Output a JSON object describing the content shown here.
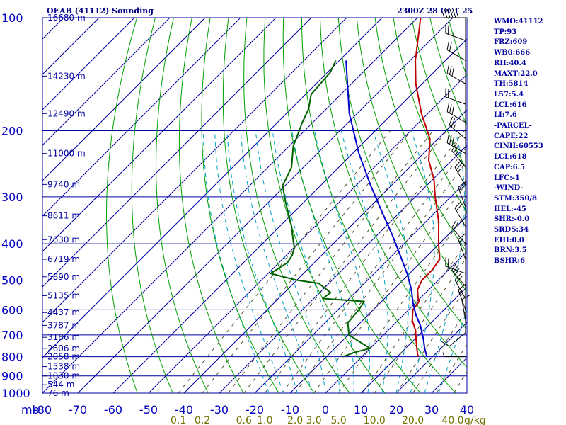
{
  "header": {
    "title_left": "OEAB (41112) Sounding",
    "title_right": "2300Z 28 OCT 25"
  },
  "indices": [
    "WMO:41112",
    "TP:93",
    "FRZ:609",
    "WB0:666",
    "RH:40.4",
    "MAXT:22.0",
    "TH:5814",
    "L57:5.4",
    "LCL:616",
    "LI:7.6",
    "-PARCEL-",
    "CAPE:22",
    "CINH:60553",
    "LCL:618",
    "CAP:6.5",
    "LFC:-1",
    "-WIND-",
    "STM:350/8",
    "HEL:-45",
    "SHR:-0.0",
    "SRDS:34",
    "EHI:0.0",
    "BRN:3.5",
    "BSHR:6"
  ],
  "colors": {
    "isotherm": "#0000a0",
    "dry_adiabat": "#00a000",
    "moist_adiabat": "#00a0c8",
    "mixing_ratio": "#505030",
    "temperature": "#c00000",
    "dewpoint": "#006000",
    "parcel": "#0000c8",
    "axis_text": "#0000c0",
    "mixing_text": "#707000",
    "height_text": "#0000a0",
    "wind": "#000000"
  },
  "chart_data": {
    "type": "line",
    "title": "OEAB (41112) Sounding",
    "diagram": "skew-T log-P",
    "xlabel": "",
    "ylabel": "mb",
    "x_unit": "°C",
    "xlim": [
      -80,
      40
    ],
    "ylim": [
      1000,
      100
    ],
    "y_scale": "log",
    "pressure_ticks": [
      100,
      200,
      300,
      400,
      500,
      600,
      700,
      800,
      900,
      1000
    ],
    "temperature_ticks": [
      -80,
      -70,
      -60,
      -50,
      -40,
      -30,
      -20,
      -10,
      0,
      10,
      20,
      30,
      40
    ],
    "temperature_tick_labels": [
      "-80",
      "-70",
      "-60",
      "-50",
      "-40",
      "-30",
      "-20",
      "-10",
      "0",
      "10",
      "20",
      "30",
      "40"
    ],
    "mixing_ratio_labels": [
      "0.1",
      "0.2",
      "0.6",
      "1.0",
      "2.0",
      "3.0",
      "5.0",
      "10.0",
      "20.0",
      "40.0"
    ],
    "mixing_ratio_unit": "g/kg",
    "height_labels": [
      {
        "p": 100,
        "label": "16680 m"
      },
      {
        "p": 143,
        "label": "14230 m"
      },
      {
        "p": 180,
        "label": "12490 m"
      },
      {
        "p": 230,
        "label": "11000 m"
      },
      {
        "p": 278,
        "label": "9740 m"
      },
      {
        "p": 337,
        "label": "8611 m"
      },
      {
        "p": 390,
        "label": "7630 m"
      },
      {
        "p": 440,
        "label": "6719 m"
      },
      {
        "p": 490,
        "label": "5890 m"
      },
      {
        "p": 550,
        "label": "5135 m"
      },
      {
        "p": 610,
        "label": "4437 m"
      },
      {
        "p": 660,
        "label": "3787 m"
      },
      {
        "p": 710,
        "label": "3186 m"
      },
      {
        "p": 760,
        "label": "2606 m"
      },
      {
        "p": 800,
        "label": "2058 m"
      },
      {
        "p": 850,
        "label": "1538 m"
      },
      {
        "p": 900,
        "label": "1030 m"
      },
      {
        "p": 950,
        "label": "544 m"
      },
      {
        "p": 1000,
        "label": "76 m"
      }
    ],
    "series": [
      {
        "name": "",
        "role": "temperature",
        "points": [
          [
            100,
            -79.1
          ],
          [
            130,
            -68.5
          ],
          [
            150,
            -61.8
          ],
          [
            180,
            -51.8
          ],
          [
            210,
            -42.3
          ],
          [
            240,
            -36.5
          ],
          [
            270,
            -29.6
          ],
          [
            300,
            -24.4
          ],
          [
            350,
            -16.3
          ],
          [
            400,
            -10.2
          ],
          [
            440,
            -5.5
          ],
          [
            470,
            -4.6
          ],
          [
            500,
            -4.6
          ],
          [
            530,
            -3.2
          ],
          [
            560,
            -0.5
          ],
          [
            570,
            0.6
          ],
          [
            600,
            1.2
          ],
          [
            640,
            4.0
          ],
          [
            680,
            7.7
          ],
          [
            720,
            10.5
          ],
          [
            760,
            13.2
          ],
          [
            790,
            15.2
          ],
          [
            800,
            16.0
          ]
        ]
      },
      {
        "name": "",
        "role": "dewpoint",
        "points": [
          [
            130,
            -91.0
          ],
          [
            140,
            -89.2
          ],
          [
            160,
            -88.4
          ],
          [
            175,
            -85.0
          ],
          [
            190,
            -83.0
          ],
          [
            220,
            -78.8
          ],
          [
            250,
            -73.4
          ],
          [
            280,
            -70.7
          ],
          [
            310,
            -65.2
          ],
          [
            360,
            -56.6
          ],
          [
            390,
            -52.5
          ],
          [
            410,
            -49.8
          ],
          [
            430,
            -48.3
          ],
          [
            450,
            -47.6
          ],
          [
            480,
            -49.3
          ],
          [
            500,
            -40.1
          ],
          [
            510,
            -32.9
          ],
          [
            540,
            -26.9
          ],
          [
            560,
            -27.5
          ],
          [
            570,
            -14.9
          ],
          [
            600,
            -14.1
          ],
          [
            650,
            -13.5
          ],
          [
            700,
            -9.8
          ],
          [
            740,
            -3.2
          ],
          [
            760,
            0.0
          ],
          [
            780,
            -3.4
          ],
          [
            800,
            -5.3
          ]
        ]
      },
      {
        "name": "",
        "role": "parcel",
        "points": [
          [
            130,
            -88.1
          ],
          [
            180,
            -72.2
          ],
          [
            230,
            -58.2
          ],
          [
            280,
            -45.8
          ],
          [
            330,
            -35.0
          ],
          [
            380,
            -25.6
          ],
          [
            430,
            -17.7
          ],
          [
            480,
            -10.7
          ],
          [
            530,
            -4.9
          ],
          [
            570,
            -1.2
          ],
          [
            616,
            3.2
          ],
          [
            660,
            7.7
          ],
          [
            720,
            12.6
          ],
          [
            760,
            15.4
          ],
          [
            800,
            18.4
          ]
        ]
      }
    ],
    "isotherm_step": 10,
    "dry_adiabats_theta_k": [
      220,
      230,
      240,
      250,
      260,
      270,
      280,
      290,
      300,
      310,
      320,
      330,
      340,
      350,
      360,
      370,
      380,
      390,
      400,
      410,
      420,
      430,
      440,
      450,
      460,
      470,
      480,
      490,
      500,
      510,
      520
    ],
    "moist_adiabats_start_temp_c": [
      -16,
      -12,
      -8,
      -4,
      0,
      4,
      8,
      12,
      16,
      20,
      24,
      28,
      32
    ],
    "mixing_ratios_gkg": [
      0.1,
      0.2,
      0.4,
      0.6,
      1.0,
      1.5,
      2.0,
      3.0,
      5.0,
      8.0,
      10.0,
      15.0,
      20.0,
      30.0,
      40.0
    ],
    "winds": [
      {
        "p": 100,
        "dir": 270,
        "kt": 60
      },
      {
        "p": 115,
        "dir": 290,
        "kt": 35
      },
      {
        "p": 130,
        "dir": 300,
        "kt": 20
      },
      {
        "p": 150,
        "dir": 300,
        "kt": 30
      },
      {
        "p": 170,
        "dir": 290,
        "kt": 20
      },
      {
        "p": 190,
        "dir": 300,
        "kt": 30
      },
      {
        "p": 210,
        "dir": 310,
        "kt": 25
      },
      {
        "p": 230,
        "dir": 300,
        "kt": 30
      },
      {
        "p": 250,
        "dir": 320,
        "kt": 25
      },
      {
        "p": 280,
        "dir": 330,
        "kt": 25
      },
      {
        "p": 320,
        "dir": 340,
        "kt": 20
      },
      {
        "p": 360,
        "dir": 330,
        "kt": 20
      },
      {
        "p": 400,
        "dir": 320,
        "kt": 20
      },
      {
        "p": 440,
        "dir": 340,
        "kt": 15
      },
      {
        "p": 480,
        "dir": 290,
        "kt": 25
      },
      {
        "p": 520,
        "dir": 320,
        "kt": 25
      },
      {
        "p": 560,
        "dir": 330,
        "kt": 20
      },
      {
        "p": 600,
        "dir": 340,
        "kt": 15
      },
      {
        "p": 640,
        "dir": 350,
        "kt": 10
      },
      {
        "p": 690,
        "dir": 230,
        "kt": 10
      },
      {
        "p": 800,
        "dir": 270,
        "kt": 5
      }
    ]
  }
}
